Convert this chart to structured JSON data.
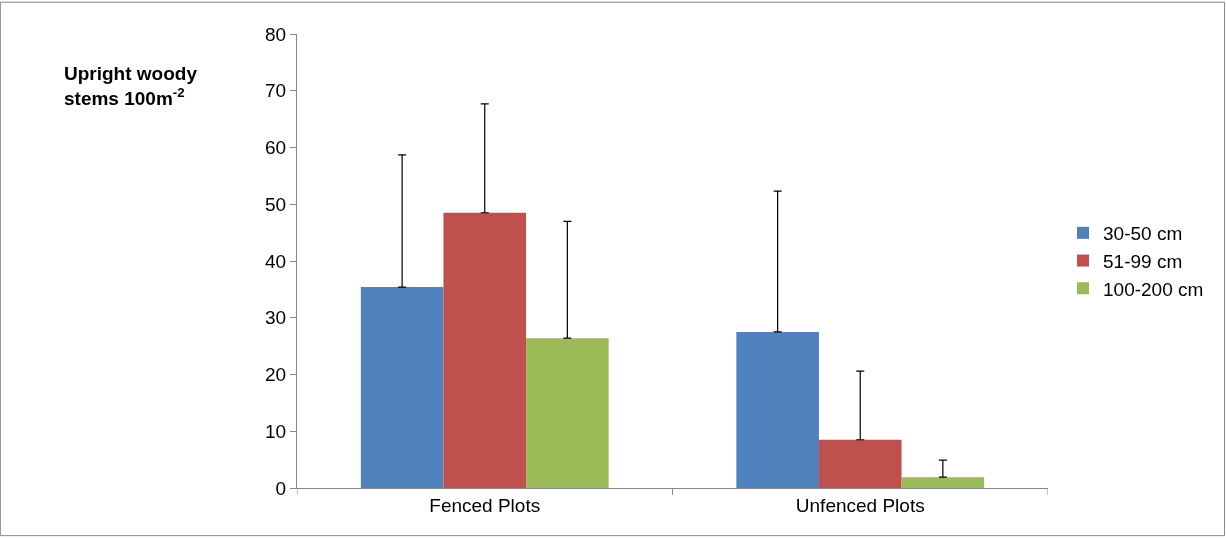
{
  "chart_data": {
    "type": "bar",
    "ylabel": "Upright woody stems 100m$^{-2}$",
    "categories": [
      "Fenced Plots",
      "Unfenced Plots"
    ],
    "series": [
      {
        "name": "30-50 cm",
        "color": "#4f81bd",
        "values": [
          35.4,
          27.5
        ],
        "errors": [
          [
            35.4,
            58.7
          ],
          [
            27.5,
            52.3
          ]
        ]
      },
      {
        "name": "51-99 cm",
        "color": "#c0504d",
        "values": [
          48.5,
          8.5
        ],
        "errors": [
          [
            48.5,
            67.7
          ],
          [
            8.5,
            20.6
          ]
        ]
      },
      {
        "name": "100-200 cm",
        "color": "#9bbb59",
        "values": [
          26.4,
          1.9
        ],
        "errors": [
          [
            26.4,
            47.0
          ],
          [
            1.9,
            4.9
          ]
        ]
      }
    ],
    "ylim": [
      0,
      80
    ],
    "yticks": [
      0,
      10,
      20,
      30,
      40,
      50,
      60,
      70,
      80
    ],
    "legend": "right"
  }
}
